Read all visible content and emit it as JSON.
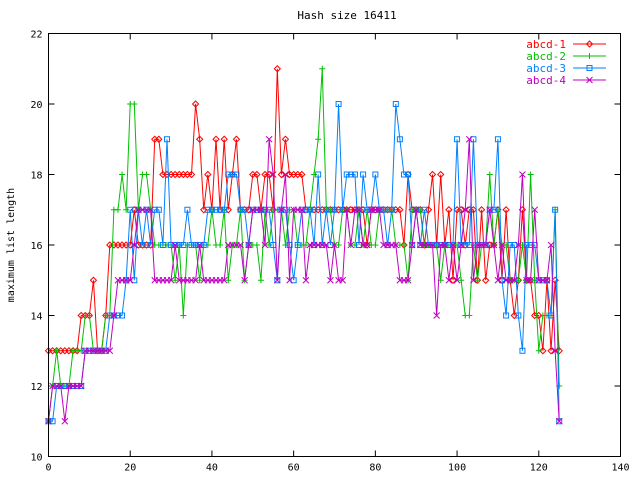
{
  "chart_data": {
    "type": "line",
    "title": "Hash size 16411",
    "xlabel": "",
    "ylabel": "maximum list length",
    "xlim": [
      0,
      140
    ],
    "ylim": [
      10,
      22
    ],
    "xticks": [
      0,
      20,
      40,
      60,
      80,
      100,
      120,
      140
    ],
    "yticks": [
      10,
      12,
      14,
      16,
      18,
      20,
      22
    ],
    "grid": false,
    "legend_position": "top-right",
    "x": [
      0,
      1,
      2,
      3,
      4,
      5,
      6,
      7,
      8,
      9,
      10,
      11,
      12,
      13,
      14,
      15,
      16,
      17,
      18,
      19,
      20,
      21,
      22,
      23,
      24,
      25,
      26,
      27,
      28,
      29,
      30,
      31,
      32,
      33,
      34,
      35,
      36,
      37,
      38,
      39,
      40,
      41,
      42,
      43,
      44,
      45,
      46,
      47,
      48,
      49,
      50,
      51,
      52,
      53,
      54,
      55,
      56,
      57,
      58,
      59,
      60,
      61,
      62,
      63,
      64,
      65,
      66,
      67,
      68,
      69,
      70,
      71,
      72,
      73,
      74,
      75,
      76,
      77,
      78,
      79,
      80,
      81,
      82,
      83,
      84,
      85,
      86,
      87,
      88,
      89,
      90,
      91,
      92,
      93,
      94,
      95,
      96,
      97,
      98,
      99,
      100,
      101,
      102,
      103,
      104,
      105,
      106,
      107,
      108,
      109,
      110,
      111,
      112,
      113,
      114,
      115,
      116,
      117,
      118,
      119,
      120,
      121,
      122,
      123,
      124,
      125
    ],
    "series": [
      {
        "name": "abcd-1",
        "color": "#ff0000",
        "marker": "diamond",
        "values": [
          13,
          13,
          13,
          13,
          13,
          13,
          13,
          13,
          14,
          14,
          14,
          15,
          13,
          13,
          14,
          16,
          16,
          16,
          16,
          16,
          16,
          17,
          16,
          16,
          16,
          16,
          19,
          19,
          18,
          18,
          18,
          18,
          18,
          18,
          18,
          18,
          20,
          19,
          17,
          18,
          17,
          19,
          17,
          19,
          17,
          18,
          19,
          17,
          17,
          17,
          18,
          18,
          17,
          18,
          18,
          17,
          21,
          18,
          19,
          18,
          18,
          18,
          18,
          17,
          17,
          17,
          17,
          17,
          17,
          17,
          17,
          17,
          17,
          17,
          17,
          17,
          17,
          17,
          16,
          17,
          17,
          17,
          17,
          17,
          17,
          17,
          17,
          16,
          18,
          17,
          17,
          17,
          16,
          17,
          18,
          16,
          18,
          16,
          17,
          15,
          17,
          17,
          16,
          17,
          17,
          15,
          17,
          15,
          16,
          16,
          17,
          15,
          17,
          15,
          14,
          15,
          17,
          15,
          15,
          14,
          14,
          13,
          15,
          13,
          15,
          13
        ]
      },
      {
        "name": "abcd-2",
        "color": "#00c000",
        "marker": "plus",
        "values": [
          11,
          12,
          13,
          12,
          12,
          12,
          13,
          13,
          13,
          14,
          14,
          13,
          13,
          13,
          14,
          14,
          17,
          17,
          18,
          17,
          20,
          20,
          17,
          18,
          18,
          17,
          16,
          16,
          16,
          16,
          16,
          15,
          16,
          14,
          16,
          16,
          16,
          15,
          16,
          16,
          17,
          16,
          16,
          17,
          15,
          16,
          16,
          17,
          15,
          16,
          16,
          16,
          15,
          17,
          16,
          17,
          17,
          17,
          16,
          17,
          17,
          16,
          16,
          16,
          17,
          18,
          19,
          21,
          17,
          17,
          16,
          16,
          17,
          17,
          16,
          16,
          17,
          16,
          17,
          16,
          16,
          17,
          17,
          17,
          17,
          16,
          16,
          16,
          15,
          17,
          17,
          17,
          16,
          16,
          16,
          16,
          15,
          16,
          16,
          16,
          16,
          15,
          14,
          14,
          16,
          15,
          16,
          16,
          18,
          16,
          17,
          16,
          16,
          15,
          15,
          15,
          16,
          15,
          18,
          15,
          13,
          14,
          14,
          14,
          17,
          12
        ]
      },
      {
        "name": "abcd-3",
        "color": "#0080ff",
        "marker": "square",
        "values": [
          11,
          11,
          12,
          12,
          12,
          12,
          12,
          12,
          12,
          13,
          13,
          13,
          13,
          13,
          13,
          14,
          14,
          14,
          14,
          15,
          17,
          15,
          17,
          16,
          17,
          16,
          17,
          17,
          16,
          19,
          16,
          16,
          16,
          16,
          17,
          16,
          16,
          16,
          16,
          17,
          17,
          17,
          17,
          17,
          18,
          18,
          18,
          17,
          17,
          16,
          17,
          17,
          17,
          17,
          17,
          16,
          15,
          17,
          17,
          16,
          15,
          16,
          17,
          17,
          17,
          16,
          18,
          16,
          17,
          16,
          17,
          20,
          17,
          18,
          18,
          18,
          16,
          18,
          17,
          17,
          18,
          17,
          17,
          16,
          17,
          20,
          19,
          18,
          18,
          16,
          17,
          16,
          17,
          16,
          16,
          16,
          16,
          16,
          16,
          16,
          19,
          16,
          16,
          16,
          19,
          16,
          16,
          16,
          17,
          17,
          19,
          15,
          14,
          16,
          16,
          14,
          13,
          16,
          16,
          16,
          15,
          15,
          15,
          14,
          17,
          11
        ]
      },
      {
        "name": "abcd-4",
        "color": "#c000c0",
        "marker": "cross",
        "values": [
          11,
          12,
          12,
          12,
          11,
          12,
          12,
          12,
          12,
          13,
          13,
          13,
          13,
          13,
          13,
          13,
          14,
          15,
          15,
          15,
          15,
          16,
          17,
          17,
          17,
          17,
          15,
          15,
          15,
          15,
          15,
          16,
          15,
          15,
          15,
          15,
          15,
          16,
          15,
          15,
          15,
          15,
          15,
          15,
          16,
          16,
          16,
          16,
          15,
          16,
          17,
          17,
          17,
          16,
          19,
          18,
          15,
          17,
          18,
          15,
          17,
          17,
          17,
          15,
          16,
          16,
          16,
          16,
          16,
          15,
          16,
          15,
          15,
          17,
          16,
          17,
          17,
          16,
          16,
          17,
          17,
          17,
          16,
          16,
          16,
          16,
          15,
          15,
          15,
          16,
          17,
          16,
          16,
          16,
          16,
          14,
          16,
          16,
          15,
          16,
          15,
          16,
          17,
          19,
          15,
          16,
          16,
          16,
          17,
          16,
          15,
          16,
          15,
          15,
          15,
          16,
          18,
          15,
          15,
          17,
          15,
          15,
          15,
          16,
          13,
          11
        ]
      }
    ]
  }
}
